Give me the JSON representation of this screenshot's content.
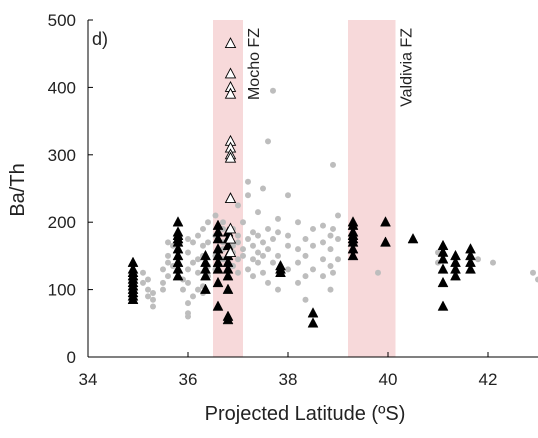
{
  "chart_data": {
    "type": "scatter",
    "panel_label": "d)",
    "xlabel": "Projected Latitude (ºS)",
    "ylabel": "Ba/Th",
    "xlim": [
      34,
      43
    ],
    "xticks": [
      34,
      36,
      38,
      40,
      42
    ],
    "ylim": [
      0,
      500
    ],
    "yticks": [
      0,
      100,
      200,
      300,
      400,
      500
    ],
    "bands": [
      {
        "x": [
          36.5,
          37.1
        ],
        "label": "Mocho FZ",
        "color": "#f7d9da"
      },
      {
        "x": [
          39.2,
          40.15
        ],
        "label": "Valdivia FZ",
        "color": "#f7d9da"
      }
    ],
    "series": [
      {
        "color": "#bdbdbd",
        "marker": "circle",
        "x": [
          35.1,
          35.1,
          35.2,
          35.2,
          35.2,
          35.3,
          35.3,
          35.3,
          35.5,
          35.5,
          35.5,
          35.6,
          35.6,
          35.6,
          35.6,
          35.7,
          35.7,
          35.9,
          35.9,
          36.0,
          36.0,
          36.0,
          36.0,
          36.0,
          36.0,
          36.0,
          36.1,
          36.1,
          36.1,
          36.2,
          36.2,
          36.2,
          36.2,
          36.3,
          36.3,
          36.3,
          36.3,
          36.3,
          36.4,
          36.4,
          36.4,
          36.4,
          36.55,
          36.55,
          36.55,
          36.55,
          36.7,
          36.7,
          36.7,
          36.7,
          36.7,
          36.9,
          36.9,
          36.9,
          36.9,
          37.0,
          37.0,
          37.0,
          37.0,
          37.0,
          37.1,
          37.1,
          37.1,
          37.2,
          37.2,
          37.2,
          37.2,
          37.3,
          37.3,
          37.3,
          37.3,
          37.4,
          37.4,
          37.4,
          37.4,
          37.5,
          37.5,
          37.5,
          37.5,
          37.6,
          37.6,
          37.6,
          37.6,
          37.7,
          37.7,
          37.7,
          37.8,
          37.8,
          37.8,
          37.8,
          38.0,
          38.0,
          38.0,
          38.0,
          38.2,
          38.2,
          38.2,
          38.2,
          38.35,
          38.35,
          38.35,
          38.35,
          38.5,
          38.5,
          38.5,
          38.7,
          38.7,
          38.7,
          38.7,
          38.85,
          38.85,
          38.85,
          38.85,
          38.9,
          38.9,
          38.9,
          39.0,
          39.0,
          39.0,
          39.8,
          41.0,
          41.0,
          41.8,
          42.1,
          42.9,
          43.0
        ],
        "values": [
          125,
          110,
          90,
          100,
          115,
          85,
          75,
          95,
          100,
          110,
          130,
          120,
          140,
          150,
          170,
          135,
          165,
          100,
          115,
          60,
          65,
          80,
          110,
          130,
          155,
          175,
          90,
          140,
          170,
          100,
          125,
          145,
          180,
          95,
          105,
          150,
          165,
          190,
          120,
          135,
          170,
          200,
          130,
          150,
          180,
          210,
          145,
          160,
          170,
          190,
          200,
          135,
          155,
          165,
          190,
          125,
          145,
          170,
          180,
          225,
          150,
          160,
          200,
          130,
          175,
          240,
          260,
          120,
          145,
          165,
          185,
          140,
          155,
          180,
          215,
          125,
          150,
          170,
          250,
          110,
          160,
          190,
          320,
          140,
          175,
          395,
          100,
          150,
          185,
          205,
          130,
          165,
          180,
          240,
          110,
          140,
          160,
          200,
          85,
          120,
          150,
          175,
          130,
          165,
          190,
          120,
          145,
          170,
          195,
          100,
          135,
          160,
          180,
          125,
          190,
          285,
          145,
          175,
          210,
          125,
          140,
          155,
          145,
          140,
          125,
          115
        ]
      },
      {
        "color": "#000000",
        "marker": "triangle",
        "x": [
          34.9,
          34.9,
          34.9,
          34.9,
          34.9,
          34.9,
          34.9,
          34.9,
          34.9,
          34.9,
          34.9,
          35.8,
          35.8,
          35.8,
          35.8,
          35.8,
          35.8,
          35.8,
          35.8,
          35.8,
          35.8,
          36.35,
          36.35,
          36.35,
          36.35,
          36.35,
          36.6,
          36.6,
          36.6,
          36.6,
          36.6,
          36.6,
          36.6,
          36.6,
          36.6,
          36.8,
          36.8,
          36.8,
          36.8,
          36.8,
          36.8,
          36.8,
          36.8,
          36.8,
          36.8,
          37.85,
          37.85,
          37.85,
          38.5,
          38.5,
          39.3,
          39.3,
          39.3,
          39.3,
          39.3,
          39.3,
          39.3,
          39.3,
          39.95,
          39.95,
          40.5,
          41.1,
          41.1,
          41.1,
          41.1,
          41.1,
          41.1,
          41.35,
          41.35,
          41.35,
          41.35,
          41.65,
          41.65,
          41.65,
          41.65
        ],
        "values": [
          85,
          90,
          95,
          100,
          105,
          110,
          115,
          120,
          125,
          130,
          140,
          120,
          130,
          140,
          150,
          160,
          170,
          175,
          180,
          185,
          200,
          100,
          120,
          130,
          140,
          150,
          75,
          110,
          130,
          140,
          150,
          160,
          175,
          185,
          195,
          55,
          60,
          100,
          120,
          130,
          140,
          150,
          165,
          175,
          185,
          125,
          130,
          135,
          50,
          65,
          150,
          160,
          170,
          175,
          180,
          185,
          195,
          200,
          170,
          200,
          175,
          75,
          110,
          130,
          145,
          155,
          165,
          120,
          130,
          140,
          150,
          130,
          140,
          150,
          160
        ]
      },
      {
        "color": "#000000",
        "marker": "triangle-open",
        "x": [
          36.85,
          36.85,
          36.85,
          36.85,
          36.85,
          36.85,
          36.85,
          36.85,
          36.85,
          36.85,
          36.85,
          36.85
        ],
        "values": [
          465,
          420,
          400,
          390,
          320,
          310,
          300,
          295,
          235,
          190,
          175,
          155
        ]
      }
    ]
  }
}
